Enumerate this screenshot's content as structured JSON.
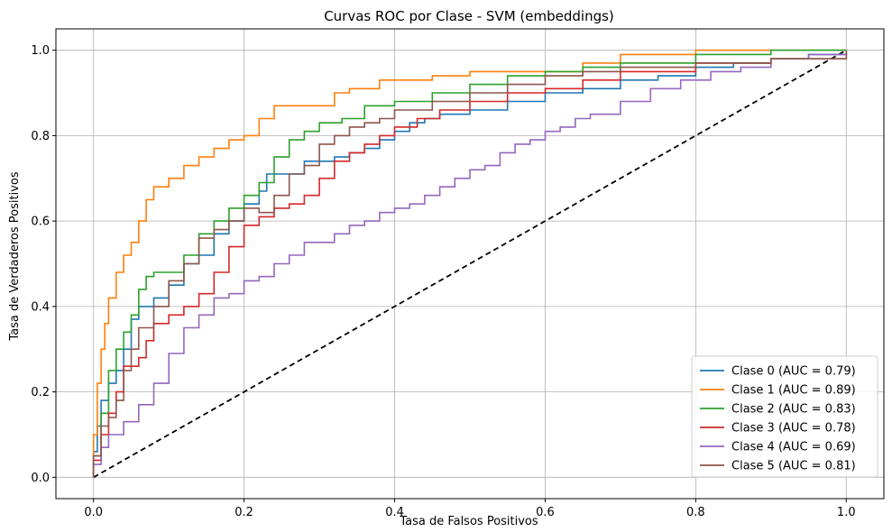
{
  "chart_data": {
    "type": "line",
    "title": "Curvas ROC por Clase - SVM (embeddings)",
    "xlabel": "Tasa de Falsos Positivos",
    "ylabel": "Tasa de Verdaderos Positivos",
    "xlim": [
      -0.05,
      1.05
    ],
    "ylim": [
      -0.05,
      1.05
    ],
    "xticks": [
      "0.0",
      "0.2",
      "0.4",
      "0.6",
      "0.8",
      "1.0"
    ],
    "yticks": [
      "0.0",
      "0.2",
      "0.4",
      "0.6",
      "0.8",
      "1.0"
    ],
    "grid": true,
    "legend_position": "bottom-right",
    "series": [
      {
        "name": "Clase 0 (AUC = 0.79)",
        "color": "#1f77b4",
        "points": [
          [
            0,
            0
          ],
          [
            0,
            0.06
          ],
          [
            0.005,
            0.12
          ],
          [
            0.01,
            0.18
          ],
          [
            0.02,
            0.22
          ],
          [
            0.03,
            0.25
          ],
          [
            0.04,
            0.3
          ],
          [
            0.05,
            0.37
          ],
          [
            0.06,
            0.4
          ],
          [
            0.08,
            0.42
          ],
          [
            0.1,
            0.45
          ],
          [
            0.12,
            0.5
          ],
          [
            0.14,
            0.52
          ],
          [
            0.16,
            0.57
          ],
          [
            0.18,
            0.6
          ],
          [
            0.2,
            0.64
          ],
          [
            0.22,
            0.67
          ],
          [
            0.23,
            0.71
          ],
          [
            0.26,
            0.71
          ],
          [
            0.28,
            0.74
          ],
          [
            0.32,
            0.75
          ],
          [
            0.34,
            0.76
          ],
          [
            0.36,
            0.77
          ],
          [
            0.38,
            0.79
          ],
          [
            0.4,
            0.81
          ],
          [
            0.42,
            0.83
          ],
          [
            0.44,
            0.84
          ],
          [
            0.46,
            0.85
          ],
          [
            0.5,
            0.86
          ],
          [
            0.55,
            0.88
          ],
          [
            0.6,
            0.9
          ],
          [
            0.65,
            0.91
          ],
          [
            0.7,
            0.93
          ],
          [
            0.75,
            0.94
          ],
          [
            0.8,
            0.96
          ],
          [
            0.85,
            0.97
          ],
          [
            0.9,
            0.98
          ],
          [
            0.95,
            0.99
          ],
          [
            1,
            1
          ]
        ]
      },
      {
        "name": "Clase 1 (AUC = 0.89)",
        "color": "#ff7f0e",
        "points": [
          [
            0,
            0
          ],
          [
            0,
            0.1
          ],
          [
            0.005,
            0.22
          ],
          [
            0.01,
            0.3
          ],
          [
            0.015,
            0.36
          ],
          [
            0.02,
            0.42
          ],
          [
            0.03,
            0.48
          ],
          [
            0.04,
            0.52
          ],
          [
            0.05,
            0.55
          ],
          [
            0.06,
            0.6
          ],
          [
            0.07,
            0.65
          ],
          [
            0.08,
            0.68
          ],
          [
            0.1,
            0.7
          ],
          [
            0.12,
            0.73
          ],
          [
            0.14,
            0.75
          ],
          [
            0.16,
            0.77
          ],
          [
            0.18,
            0.79
          ],
          [
            0.2,
            0.8
          ],
          [
            0.22,
            0.84
          ],
          [
            0.24,
            0.87
          ],
          [
            0.28,
            0.87
          ],
          [
            0.32,
            0.9
          ],
          [
            0.34,
            0.91
          ],
          [
            0.38,
            0.93
          ],
          [
            0.45,
            0.94
          ],
          [
            0.5,
            0.95
          ],
          [
            0.58,
            0.95
          ],
          [
            0.65,
            0.97
          ],
          [
            0.7,
            0.99
          ],
          [
            0.8,
            1
          ],
          [
            0.9,
            1
          ],
          [
            1,
            1
          ]
        ]
      },
      {
        "name": "Clase 2 (AUC = 0.83)",
        "color": "#2ca02c",
        "points": [
          [
            0,
            0
          ],
          [
            0,
            0.05
          ],
          [
            0.01,
            0.15
          ],
          [
            0.02,
            0.25
          ],
          [
            0.03,
            0.3
          ],
          [
            0.04,
            0.34
          ],
          [
            0.05,
            0.38
          ],
          [
            0.06,
            0.44
          ],
          [
            0.07,
            0.47
          ],
          [
            0.08,
            0.48
          ],
          [
            0.1,
            0.48
          ],
          [
            0.12,
            0.52
          ],
          [
            0.14,
            0.57
          ],
          [
            0.16,
            0.6
          ],
          [
            0.18,
            0.63
          ],
          [
            0.2,
            0.66
          ],
          [
            0.22,
            0.69
          ],
          [
            0.24,
            0.75
          ],
          [
            0.26,
            0.79
          ],
          [
            0.28,
            0.81
          ],
          [
            0.3,
            0.83
          ],
          [
            0.33,
            0.84
          ],
          [
            0.36,
            0.87
          ],
          [
            0.4,
            0.88
          ],
          [
            0.45,
            0.9
          ],
          [
            0.5,
            0.92
          ],
          [
            0.55,
            0.94
          ],
          [
            0.6,
            0.95
          ],
          [
            0.65,
            0.96
          ],
          [
            0.7,
            0.97
          ],
          [
            0.8,
            0.99
          ],
          [
            0.9,
            1
          ],
          [
            1,
            1
          ]
        ]
      },
      {
        "name": "Clase 3 (AUC = 0.78)",
        "color": "#d62728",
        "points": [
          [
            0,
            0
          ],
          [
            0,
            0.04
          ],
          [
            0.01,
            0.1
          ],
          [
            0.02,
            0.15
          ],
          [
            0.03,
            0.2
          ],
          [
            0.04,
            0.26
          ],
          [
            0.06,
            0.28
          ],
          [
            0.07,
            0.32
          ],
          [
            0.08,
            0.36
          ],
          [
            0.1,
            0.38
          ],
          [
            0.12,
            0.4
          ],
          [
            0.14,
            0.43
          ],
          [
            0.16,
            0.48
          ],
          [
            0.18,
            0.54
          ],
          [
            0.2,
            0.59
          ],
          [
            0.22,
            0.61
          ],
          [
            0.24,
            0.63
          ],
          [
            0.26,
            0.64
          ],
          [
            0.28,
            0.66
          ],
          [
            0.3,
            0.7
          ],
          [
            0.32,
            0.74
          ],
          [
            0.34,
            0.76
          ],
          [
            0.36,
            0.78
          ],
          [
            0.38,
            0.8
          ],
          [
            0.4,
            0.82
          ],
          [
            0.43,
            0.84
          ],
          [
            0.46,
            0.86
          ],
          [
            0.5,
            0.88
          ],
          [
            0.55,
            0.9
          ],
          [
            0.6,
            0.91
          ],
          [
            0.65,
            0.93
          ],
          [
            0.7,
            0.95
          ],
          [
            0.8,
            0.97
          ],
          [
            0.9,
            0.98
          ],
          [
            1,
            1
          ]
        ]
      },
      {
        "name": "Clase 4 (AUC = 0.69)",
        "color": "#9467bd",
        "points": [
          [
            0,
            0
          ],
          [
            0,
            0.03
          ],
          [
            0.01,
            0.07
          ],
          [
            0.02,
            0.1
          ],
          [
            0.04,
            0.13
          ],
          [
            0.06,
            0.17
          ],
          [
            0.08,
            0.22
          ],
          [
            0.1,
            0.29
          ],
          [
            0.12,
            0.35
          ],
          [
            0.14,
            0.38
          ],
          [
            0.16,
            0.42
          ],
          [
            0.18,
            0.43
          ],
          [
            0.2,
            0.46
          ],
          [
            0.22,
            0.47
          ],
          [
            0.24,
            0.5
          ],
          [
            0.26,
            0.52
          ],
          [
            0.28,
            0.55
          ],
          [
            0.3,
            0.55
          ],
          [
            0.32,
            0.57
          ],
          [
            0.34,
            0.59
          ],
          [
            0.36,
            0.6
          ],
          [
            0.38,
            0.62
          ],
          [
            0.4,
            0.63
          ],
          [
            0.42,
            0.64
          ],
          [
            0.44,
            0.66
          ],
          [
            0.46,
            0.68
          ],
          [
            0.48,
            0.7
          ],
          [
            0.5,
            0.72
          ],
          [
            0.52,
            0.73
          ],
          [
            0.54,
            0.76
          ],
          [
            0.56,
            0.78
          ],
          [
            0.58,
            0.79
          ],
          [
            0.6,
            0.81
          ],
          [
            0.62,
            0.82
          ],
          [
            0.64,
            0.84
          ],
          [
            0.66,
            0.85
          ],
          [
            0.7,
            0.88
          ],
          [
            0.74,
            0.91
          ],
          [
            0.78,
            0.93
          ],
          [
            0.82,
            0.95
          ],
          [
            0.86,
            0.96
          ],
          [
            0.9,
            0.98
          ],
          [
            0.95,
            0.99
          ],
          [
            1,
            1
          ]
        ]
      },
      {
        "name": "Clase 5 (AUC = 0.81)",
        "color": "#8c564b",
        "points": [
          [
            0,
            0
          ],
          [
            0,
            0.05
          ],
          [
            0.01,
            0.12
          ],
          [
            0.02,
            0.14
          ],
          [
            0.03,
            0.18
          ],
          [
            0.04,
            0.25
          ],
          [
            0.05,
            0.3
          ],
          [
            0.06,
            0.35
          ],
          [
            0.08,
            0.4
          ],
          [
            0.1,
            0.46
          ],
          [
            0.12,
            0.5
          ],
          [
            0.14,
            0.56
          ],
          [
            0.16,
            0.58
          ],
          [
            0.18,
            0.6
          ],
          [
            0.2,
            0.63
          ],
          [
            0.22,
            0.62
          ],
          [
            0.24,
            0.66
          ],
          [
            0.26,
            0.71
          ],
          [
            0.28,
            0.73
          ],
          [
            0.3,
            0.78
          ],
          [
            0.32,
            0.8
          ],
          [
            0.34,
            0.82
          ],
          [
            0.36,
            0.83
          ],
          [
            0.38,
            0.84
          ],
          [
            0.4,
            0.86
          ],
          [
            0.45,
            0.88
          ],
          [
            0.5,
            0.9
          ],
          [
            0.55,
            0.92
          ],
          [
            0.6,
            0.94
          ],
          [
            0.65,
            0.95
          ],
          [
            0.7,
            0.96
          ],
          [
            0.8,
            0.97
          ],
          [
            0.9,
            0.98
          ],
          [
            1,
            1
          ]
        ]
      }
    ],
    "reference_line": {
      "color": "#000000",
      "dashed": true,
      "points": [
        [
          0,
          0
        ],
        [
          1,
          1
        ]
      ]
    }
  }
}
